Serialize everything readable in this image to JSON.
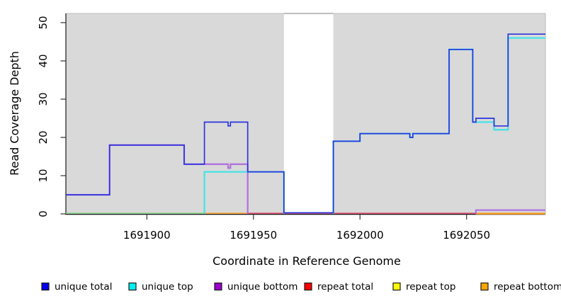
{
  "chart_data": {
    "type": "line",
    "subtype": "step-coverage",
    "title": "",
    "xlabel": "Coordinate in Reference Genome",
    "ylabel": "Read Coverage Depth",
    "xlim": [
      1691862,
      1692087
    ],
    "ylim": [
      0,
      52.4
    ],
    "x_ticks": [
      1691900,
      1691950,
      1692000,
      1692050
    ],
    "y_ticks": [
      0,
      10,
      20,
      30,
      40,
      50
    ],
    "grid": false,
    "plot_bg_color": "#D9D9D9",
    "highlight_band": {
      "x0": 1691964.3,
      "x1": 1691987.5,
      "color": "#FFFFFF"
    },
    "legend_position": "bottom",
    "series": [
      {
        "name": "unique total",
        "legend_color": "#0000EE",
        "line_color": "#2B35DC",
        "line_width": 1.7,
        "zero_lift": 1.6,
        "paths": [
          [
            [
              1691862,
              5
            ],
            [
              1691882.5,
              5
            ],
            [
              1691882.5,
              18
            ],
            [
              1691917.5,
              18
            ],
            [
              1691917.5,
              13
            ],
            [
              1691927,
              13
            ],
            [
              1691927,
              24
            ],
            [
              1691938.1,
              24
            ],
            [
              1691938.1,
              23
            ],
            [
              1691939.2,
              23
            ],
            [
              1691939.2,
              24
            ],
            [
              1691947.3,
              24
            ],
            [
              1691947.3,
              11
            ],
            [
              1691964.3,
              11
            ],
            [
              1691964.3,
              0
            ],
            [
              1691987.5,
              0
            ],
            [
              1691987.5,
              19
            ],
            [
              1692000,
              19
            ],
            [
              1692000,
              21
            ],
            [
              1692023.4,
              21
            ],
            [
              1692023.4,
              20
            ],
            [
              1692024.8,
              20
            ],
            [
              1692024.8,
              21
            ],
            [
              1692041.8,
              21
            ],
            [
              1692041.8,
              43
            ],
            [
              1692052.9,
              43
            ],
            [
              1692052.9,
              24
            ],
            [
              1692054.4,
              24
            ],
            [
              1692054.4,
              25
            ],
            [
              1692062.9,
              25
            ],
            [
              1692062.9,
              23
            ],
            [
              1692069.5,
              23
            ],
            [
              1692069.5,
              47
            ],
            [
              1692087,
              47
            ]
          ]
        ]
      },
      {
        "name": "unique top",
        "legend_color": "#00EEEE",
        "line_color": "#49E2E6",
        "line_width": 2.3,
        "zero_lift": 0,
        "paths": [
          [
            [
              1691927,
              0
            ],
            [
              1691927,
              11
            ],
            [
              1691964.3,
              11
            ],
            [
              1691964.3,
              0
            ]
          ],
          [
            [
              1691987.5,
              0
            ],
            [
              1691987.5,
              19
            ],
            [
              1692000,
              19
            ],
            [
              1692000,
              21
            ],
            [
              1692023.4,
              21
            ],
            [
              1692023.4,
              20
            ],
            [
              1692024.8,
              20
            ],
            [
              1692024.8,
              21
            ],
            [
              1692041.8,
              21
            ],
            [
              1692041.8,
              43
            ],
            [
              1692052.9,
              43
            ],
            [
              1692052.9,
              24
            ],
            [
              1692062.9,
              24
            ],
            [
              1692062.9,
              22
            ],
            [
              1692069.5,
              22
            ],
            [
              1692069.5,
              46
            ],
            [
              1692087,
              46
            ]
          ]
        ]
      },
      {
        "name": "unique bottom",
        "legend_color": "#9900CC",
        "line_color": "#B273DE",
        "line_width": 2.3,
        "zero_lift": 0,
        "paths": [
          [
            [
              1691862,
              5
            ],
            [
              1691882.5,
              5
            ],
            [
              1691882.5,
              18
            ],
            [
              1691917.5,
              18
            ],
            [
              1691917.5,
              13
            ],
            [
              1691938.1,
              13
            ],
            [
              1691938.1,
              12
            ],
            [
              1691939.2,
              12
            ],
            [
              1691939.2,
              13
            ],
            [
              1691947.3,
              13
            ],
            [
              1691947.3,
              0
            ]
          ],
          [
            [
              1692054.4,
              0
            ],
            [
              1692054.4,
              1
            ],
            [
              1692087,
              1
            ]
          ]
        ]
      },
      {
        "name": "repeat total",
        "legend_color": "#FF0000",
        "line_color": "#DE3D64",
        "line_width": 1.5,
        "zero_lift": 0,
        "paths": []
      },
      {
        "name": "repeat top",
        "legend_color": "#FFFF00",
        "line_color": "#F2E33C",
        "line_width": 1.5,
        "zero_lift": 0,
        "paths": []
      },
      {
        "name": "repeat bottom",
        "legend_color": "#FFA500",
        "line_color": "#FF9C1F",
        "line_width": 1.5,
        "zero_lift": 0,
        "paths": [
          [
            [
              1692054.4,
              0
            ],
            [
              1692087,
              0
            ]
          ]
        ]
      }
    ],
    "zero_line_segments": [
      {
        "x0": 1691862,
        "x1": 1691927,
        "color": "#82CE82"
      },
      {
        "x0": 1691927,
        "x1": 1691947.3,
        "color": "#FF9C1F"
      },
      {
        "x0": 1691947.3,
        "x1": 1692054.4,
        "color": "#DE3D64"
      },
      {
        "x0": 1692054.4,
        "x1": 1692087,
        "color": "#FF9C1F"
      }
    ]
  }
}
